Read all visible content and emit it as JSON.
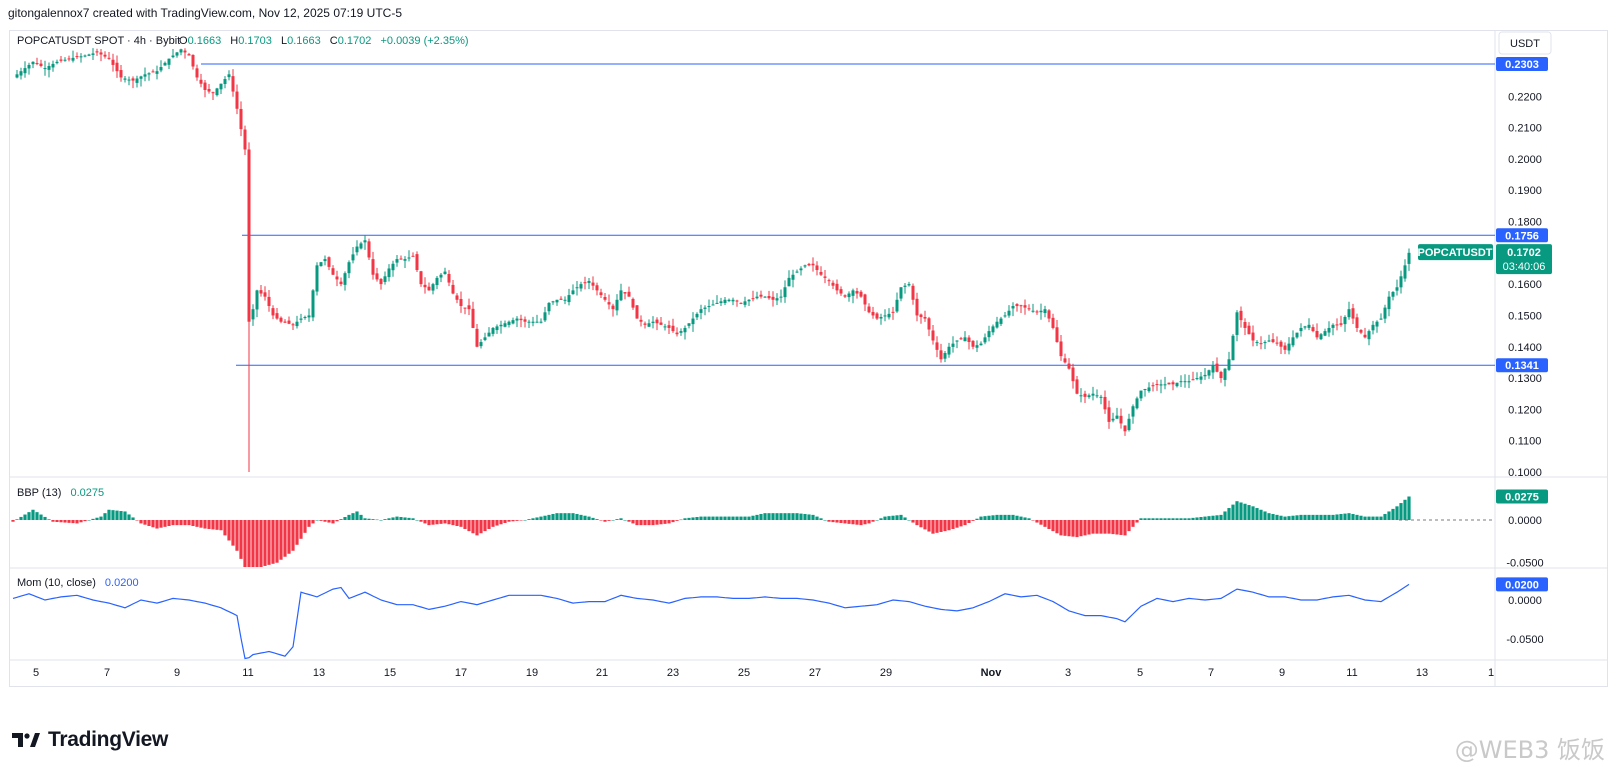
{
  "header": {
    "attribution": "gitongalennox7 created with TradingView.com, Nov 12, 2025 07:19 UTC-5"
  },
  "legend": {
    "symbol": "POPCATUSDT SPOT · 4h · Bybit",
    "o_label": "O",
    "o": "0.1663",
    "h_label": "H",
    "h": "0.1703",
    "l_label": "L",
    "l": "0.1663",
    "c_label": "C",
    "c": "0.1702",
    "change": "+0.0039 (+2.35%)"
  },
  "currency_button": "USDT",
  "colors": {
    "up": "#089981",
    "down": "#f23645",
    "line": "#2962ff",
    "grid": "#e0e3eb",
    "text": "#131722"
  },
  "price_axis": {
    "ticks": [
      "0.2200",
      "0.2100",
      "0.2000",
      "0.1900",
      "0.1800",
      "0.1600",
      "0.1500",
      "0.1400",
      "0.1300",
      "0.1200",
      "0.1100",
      "0.1000"
    ],
    "tick_values": [
      0.22,
      0.21,
      0.2,
      0.19,
      0.18,
      0.16,
      0.15,
      0.14,
      0.13,
      0.12,
      0.11,
      0.1
    ],
    "range": [
      0.1,
      0.23
    ]
  },
  "levels": [
    {
      "label": "0.2303",
      "value": 0.2303
    },
    {
      "label": "0.1756",
      "value": 0.1756
    },
    {
      "label": "0.1341",
      "value": 0.1341
    }
  ],
  "last_price": {
    "symbol": "POPCATUSDT",
    "price": "0.1702",
    "countdown": "03:40:06",
    "value": 0.1702
  },
  "bbp": {
    "title": "BBP (13)",
    "value": "0.0275",
    "ticks": [
      "0.0000",
      "-0.0500"
    ],
    "tick_values": [
      0.0,
      -0.05
    ]
  },
  "mom": {
    "title": "Mom (10, close)",
    "value": "0.0200",
    "ticks": [
      "0.0000",
      "-0.0500"
    ],
    "tick_values": [
      0.0,
      -0.05
    ]
  },
  "time_axis": [
    "5",
    "7",
    "9",
    "11",
    "13",
    "15",
    "17",
    "19",
    "21",
    "23",
    "25",
    "27",
    "29",
    "Nov",
    "3",
    "5",
    "7",
    "9",
    "11",
    "13",
    "1"
  ],
  "brand": "TradingView",
  "watermark": "@WEB3 饭饭",
  "chart_data": {
    "type": "candlestick",
    "symbol": "POPCATUSDT",
    "interval": "4h",
    "x": [
      "Oct 5",
      "Oct 7",
      "Oct 9",
      "Oct 11",
      "Oct 13",
      "Oct 15",
      "Oct 17",
      "Oct 19",
      "Oct 21",
      "Oct 23",
      "Oct 25",
      "Oct 27",
      "Oct 29",
      "Nov 1",
      "Nov 3",
      "Nov 5",
      "Nov 7",
      "Nov 9",
      "Nov 11"
    ],
    "close_path": [
      [
        0,
        0.226
      ],
      [
        3,
        0.229
      ],
      [
        5,
        0.231
      ],
      [
        8,
        0.229
      ],
      [
        11,
        0.231
      ],
      [
        14,
        0.232
      ],
      [
        18,
        0.233
      ],
      [
        21,
        0.234
      ],
      [
        24,
        0.232
      ],
      [
        27,
        0.226
      ],
      [
        30,
        0.225
      ],
      [
        33,
        0.227
      ],
      [
        36,
        0.228
      ],
      [
        39,
        0.232
      ],
      [
        42,
        0.235
      ],
      [
        44,
        0.233
      ],
      [
        46,
        0.226
      ],
      [
        48,
        0.222
      ],
      [
        50,
        0.221
      ],
      [
        52,
        0.224
      ],
      [
        54,
        0.227
      ],
      [
        56,
        0.216
      ],
      [
        58,
        0.203
      ],
      [
        59,
        0.148
      ],
      [
        60,
        0.152
      ],
      [
        61,
        0.158
      ],
      [
        63,
        0.156
      ],
      [
        65,
        0.15
      ],
      [
        67,
        0.148
      ],
      [
        70,
        0.147
      ],
      [
        72,
        0.149
      ],
      [
        74,
        0.15
      ],
      [
        76,
        0.166
      ],
      [
        78,
        0.168
      ],
      [
        80,
        0.163
      ],
      [
        82,
        0.16
      ],
      [
        84,
        0.167
      ],
      [
        86,
        0.172
      ],
      [
        88,
        0.174
      ],
      [
        90,
        0.163
      ],
      [
        92,
        0.16
      ],
      [
        94,
        0.165
      ],
      [
        96,
        0.168
      ],
      [
        98,
        0.168
      ],
      [
        100,
        0.169
      ],
      [
        102,
        0.16
      ],
      [
        104,
        0.158
      ],
      [
        106,
        0.162
      ],
      [
        108,
        0.164
      ],
      [
        110,
        0.157
      ],
      [
        112,
        0.153
      ],
      [
        114,
        0.152
      ],
      [
        116,
        0.14
      ],
      [
        118,
        0.143
      ],
      [
        120,
        0.146
      ],
      [
        122,
        0.147
      ],
      [
        124,
        0.148
      ],
      [
        126,
        0.149
      ],
      [
        128,
        0.148
      ],
      [
        130,
        0.148
      ],
      [
        132,
        0.148
      ],
      [
        134,
        0.154
      ],
      [
        136,
        0.155
      ],
      [
        138,
        0.155
      ],
      [
        140,
        0.158
      ],
      [
        142,
        0.16
      ],
      [
        144,
        0.161
      ],
      [
        146,
        0.158
      ],
      [
        148,
        0.155
      ],
      [
        150,
        0.152
      ],
      [
        152,
        0.158
      ],
      [
        154,
        0.156
      ],
      [
        156,
        0.149
      ],
      [
        158,
        0.147
      ],
      [
        160,
        0.148
      ],
      [
        162,
        0.147
      ],
      [
        164,
        0.146
      ],
      [
        166,
        0.144
      ],
      [
        168,
        0.146
      ],
      [
        170,
        0.149
      ],
      [
        172,
        0.152
      ],
      [
        174,
        0.153
      ],
      [
        176,
        0.154
      ],
      [
        178,
        0.155
      ],
      [
        180,
        0.155
      ],
      [
        182,
        0.154
      ],
      [
        184,
        0.155
      ],
      [
        186,
        0.156
      ],
      [
        188,
        0.156
      ],
      [
        190,
        0.155
      ],
      [
        192,
        0.156
      ],
      [
        194,
        0.162
      ],
      [
        196,
        0.164
      ],
      [
        198,
        0.166
      ],
      [
        200,
        0.166
      ],
      [
        202,
        0.163
      ],
      [
        204,
        0.161
      ],
      [
        206,
        0.158
      ],
      [
        208,
        0.156
      ],
      [
        210,
        0.158
      ],
      [
        212,
        0.156
      ],
      [
        214,
        0.151
      ],
      [
        216,
        0.149
      ],
      [
        218,
        0.15
      ],
      [
        220,
        0.151
      ],
      [
        222,
        0.159
      ],
      [
        224,
        0.16
      ],
      [
        226,
        0.15
      ],
      [
        228,
        0.149
      ],
      [
        230,
        0.142
      ],
      [
        232,
        0.136
      ],
      [
        234,
        0.14
      ],
      [
        236,
        0.142
      ],
      [
        238,
        0.143
      ],
      [
        240,
        0.14
      ],
      [
        242,
        0.141
      ],
      [
        244,
        0.145
      ],
      [
        246,
        0.148
      ],
      [
        248,
        0.15
      ],
      [
        250,
        0.153
      ],
      [
        252,
        0.153
      ],
      [
        254,
        0.152
      ],
      [
        256,
        0.151
      ],
      [
        258,
        0.152
      ],
      [
        260,
        0.146
      ],
      [
        262,
        0.137
      ],
      [
        264,
        0.133
      ],
      [
        266,
        0.125
      ],
      [
        268,
        0.124
      ],
      [
        270,
        0.125
      ],
      [
        272,
        0.124
      ],
      [
        274,
        0.116
      ],
      [
        276,
        0.118
      ],
      [
        278,
        0.113
      ],
      [
        280,
        0.121
      ],
      [
        282,
        0.126
      ],
      [
        284,
        0.127
      ],
      [
        286,
        0.128
      ],
      [
        288,
        0.128
      ],
      [
        290,
        0.128
      ],
      [
        292,
        0.129
      ],
      [
        294,
        0.129
      ],
      [
        296,
        0.13
      ],
      [
        298,
        0.131
      ],
      [
        300,
        0.134
      ],
      [
        302,
        0.13
      ],
      [
        304,
        0.136
      ],
      [
        306,
        0.151
      ],
      [
        308,
        0.146
      ],
      [
        310,
        0.142
      ],
      [
        312,
        0.141
      ],
      [
        314,
        0.142
      ],
      [
        316,
        0.141
      ],
      [
        318,
        0.139
      ],
      [
        320,
        0.143
      ],
      [
        322,
        0.146
      ],
      [
        324,
        0.147
      ],
      [
        326,
        0.143
      ],
      [
        328,
        0.145
      ],
      [
        330,
        0.147
      ],
      [
        332,
        0.147
      ],
      [
        334,
        0.152
      ],
      [
        336,
        0.146
      ],
      [
        338,
        0.143
      ],
      [
        340,
        0.147
      ],
      [
        342,
        0.149
      ],
      [
        344,
        0.156
      ],
      [
        346,
        0.159
      ],
      [
        348,
        0.166
      ],
      [
        349,
        0.17
      ]
    ],
    "bbp_series": [
      [
        0,
        -0.002
      ],
      [
        5,
        0.012
      ],
      [
        10,
        -0.002
      ],
      [
        16,
        -0.004
      ],
      [
        22,
        0.004
      ],
      [
        24,
        0.012
      ],
      [
        28,
        0.01
      ],
      [
        32,
        -0.004
      ],
      [
        36,
        -0.01
      ],
      [
        40,
        -0.006
      ],
      [
        44,
        -0.006
      ],
      [
        48,
        -0.01
      ],
      [
        52,
        -0.012
      ],
      [
        56,
        -0.036
      ],
      [
        58,
        -0.055
      ],
      [
        62,
        -0.055
      ],
      [
        66,
        -0.05
      ],
      [
        70,
        -0.036
      ],
      [
        74,
        -0.008
      ],
      [
        76,
        0.0
      ],
      [
        80,
        -0.004
      ],
      [
        84,
        0.006
      ],
      [
        86,
        0.01
      ],
      [
        88,
        0.002
      ],
      [
        92,
        0.0
      ],
      [
        96,
        0.004
      ],
      [
        100,
        0.002
      ],
      [
        104,
        -0.006
      ],
      [
        108,
        -0.004
      ],
      [
        112,
        -0.008
      ],
      [
        116,
        -0.018
      ],
      [
        120,
        -0.008
      ],
      [
        124,
        -0.002
      ],
      [
        128,
        0.0
      ],
      [
        132,
        0.004
      ],
      [
        136,
        0.008
      ],
      [
        140,
        0.008
      ],
      [
        144,
        0.004
      ],
      [
        148,
        -0.002
      ],
      [
        152,
        0.002
      ],
      [
        156,
        -0.006
      ],
      [
        160,
        -0.006
      ],
      [
        164,
        -0.004
      ],
      [
        168,
        0.002
      ],
      [
        172,
        0.004
      ],
      [
        176,
        0.004
      ],
      [
        180,
        0.004
      ],
      [
        184,
        0.004
      ],
      [
        188,
        0.008
      ],
      [
        192,
        0.008
      ],
      [
        196,
        0.008
      ],
      [
        200,
        0.006
      ],
      [
        204,
        -0.002
      ],
      [
        208,
        -0.004
      ],
      [
        212,
        -0.006
      ],
      [
        214,
        -0.004
      ],
      [
        218,
        0.004
      ],
      [
        222,
        0.006
      ],
      [
        226,
        -0.006
      ],
      [
        230,
        -0.016
      ],
      [
        234,
        -0.012
      ],
      [
        238,
        -0.006
      ],
      [
        242,
        0.004
      ],
      [
        246,
        0.006
      ],
      [
        250,
        0.006
      ],
      [
        254,
        0.002
      ],
      [
        258,
        -0.008
      ],
      [
        262,
        -0.018
      ],
      [
        266,
        -0.02
      ],
      [
        270,
        -0.016
      ],
      [
        274,
        -0.016
      ],
      [
        278,
        -0.018
      ],
      [
        282,
        0.002
      ],
      [
        286,
        0.002
      ],
      [
        290,
        0.002
      ],
      [
        294,
        0.002
      ],
      [
        298,
        0.004
      ],
      [
        302,
        0.006
      ],
      [
        306,
        0.022
      ],
      [
        310,
        0.016
      ],
      [
        314,
        0.008
      ],
      [
        318,
        0.004
      ],
      [
        322,
        0.006
      ],
      [
        326,
        0.006
      ],
      [
        330,
        0.006
      ],
      [
        334,
        0.008
      ],
      [
        338,
        0.004
      ],
      [
        342,
        0.004
      ],
      [
        346,
        0.016
      ],
      [
        349,
        0.0275
      ]
    ],
    "mom_series": [
      [
        0,
        0.002
      ],
      [
        4,
        0.008
      ],
      [
        8,
        0.0
      ],
      [
        12,
        0.004
      ],
      [
        16,
        0.006
      ],
      [
        20,
        0.0
      ],
      [
        24,
        -0.004
      ],
      [
        28,
        -0.01
      ],
      [
        32,
        0.0
      ],
      [
        36,
        -0.004
      ],
      [
        40,
        0.002
      ],
      [
        44,
        0.0
      ],
      [
        48,
        -0.004
      ],
      [
        52,
        -0.01
      ],
      [
        56,
        -0.02
      ],
      [
        58,
        -0.078
      ],
      [
        60,
        -0.07
      ],
      [
        64,
        -0.066
      ],
      [
        68,
        -0.072
      ],
      [
        70,
        -0.06
      ],
      [
        72,
        0.01
      ],
      [
        76,
        0.004
      ],
      [
        80,
        0.014
      ],
      [
        82,
        0.016
      ],
      [
        84,
        0.002
      ],
      [
        88,
        0.01
      ],
      [
        92,
        0.0
      ],
      [
        96,
        -0.006
      ],
      [
        100,
        -0.006
      ],
      [
        104,
        -0.012
      ],
      [
        108,
        -0.008
      ],
      [
        112,
        -0.002
      ],
      [
        116,
        -0.006
      ],
      [
        120,
        0.0
      ],
      [
        124,
        0.006
      ],
      [
        128,
        0.006
      ],
      [
        132,
        0.006
      ],
      [
        136,
        0.002
      ],
      [
        140,
        -0.004
      ],
      [
        144,
        -0.002
      ],
      [
        148,
        -0.002
      ],
      [
        152,
        0.006
      ],
      [
        156,
        0.002
      ],
      [
        160,
        0.0
      ],
      [
        164,
        -0.004
      ],
      [
        168,
        0.002
      ],
      [
        172,
        0.004
      ],
      [
        176,
        0.004
      ],
      [
        180,
        0.002
      ],
      [
        184,
        0.002
      ],
      [
        188,
        0.004
      ],
      [
        192,
        0.002
      ],
      [
        196,
        0.002
      ],
      [
        200,
        0.0
      ],
      [
        204,
        -0.004
      ],
      [
        208,
        -0.01
      ],
      [
        212,
        -0.008
      ],
      [
        216,
        -0.006
      ],
      [
        220,
        0.0
      ],
      [
        224,
        -0.002
      ],
      [
        228,
        -0.008
      ],
      [
        232,
        -0.012
      ],
      [
        236,
        -0.014
      ],
      [
        240,
        -0.01
      ],
      [
        244,
        -0.002
      ],
      [
        248,
        0.008
      ],
      [
        252,
        0.004
      ],
      [
        256,
        0.006
      ],
      [
        260,
        -0.002
      ],
      [
        264,
        -0.014
      ],
      [
        268,
        -0.02
      ],
      [
        272,
        -0.02
      ],
      [
        276,
        -0.024
      ],
      [
        278,
        -0.028
      ],
      [
        282,
        -0.008
      ],
      [
        286,
        0.002
      ],
      [
        290,
        -0.002
      ],
      [
        294,
        0.002
      ],
      [
        298,
        0.0
      ],
      [
        302,
        0.002
      ],
      [
        306,
        0.014
      ],
      [
        310,
        0.01
      ],
      [
        314,
        0.004
      ],
      [
        318,
        0.004
      ],
      [
        322,
        0.0
      ],
      [
        326,
        0.0
      ],
      [
        330,
        0.004
      ],
      [
        334,
        0.006
      ],
      [
        338,
        0.0
      ],
      [
        342,
        -0.002
      ],
      [
        346,
        0.01
      ],
      [
        349,
        0.02
      ]
    ],
    "bbp_range": [
      -0.055,
      0.02
    ],
    "mom_range": [
      -0.078,
      0.022
    ]
  }
}
